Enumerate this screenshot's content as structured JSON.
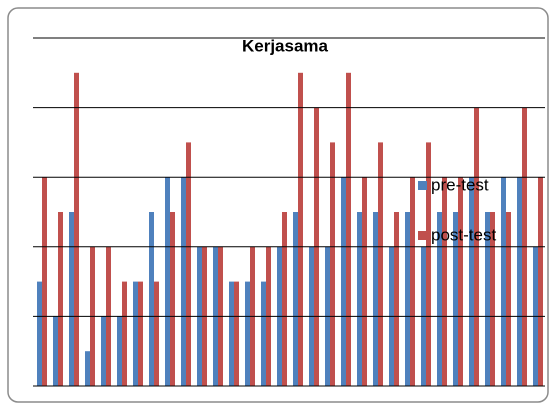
{
  "chart_data": {
    "type": "bar",
    "title": "Kerjasama",
    "categories": [
      null,
      null,
      null,
      null,
      null,
      null,
      null,
      null,
      null,
      null,
      null,
      null,
      null,
      null,
      null,
      null,
      null,
      null,
      null,
      null,
      null,
      null,
      null,
      null,
      null,
      null,
      null,
      null,
      null,
      null,
      null,
      null
    ],
    "series": [
      {
        "name": "pre-test",
        "color": "#4f81bd",
        "values": [
          1.5,
          1,
          2.5,
          0.5,
          1,
          1,
          1.5,
          2.5,
          3,
          3,
          2,
          2,
          1.5,
          1.5,
          1.5,
          2,
          2.5,
          2,
          2,
          3,
          2.5,
          2.5,
          2,
          2.5,
          2,
          2.5,
          2.5,
          3,
          2.5,
          3,
          3,
          2
        ]
      },
      {
        "name": "post-test",
        "color": "#c0504d",
        "values": [
          3,
          2.5,
          4.5,
          2,
          2,
          1.5,
          1.5,
          1.5,
          2.5,
          3.5,
          2,
          2,
          1.5,
          2,
          2,
          2.5,
          4.5,
          4,
          3.5,
          4.5,
          3,
          3.5,
          2.5,
          3,
          3.5,
          3,
          3,
          4,
          2.5,
          2.5,
          4,
          3
        ]
      }
    ],
    "ylim": [
      0,
      5
    ],
    "yticks": [
      0,
      1,
      2,
      3,
      4,
      5
    ],
    "grid": true,
    "legend": "right"
  }
}
